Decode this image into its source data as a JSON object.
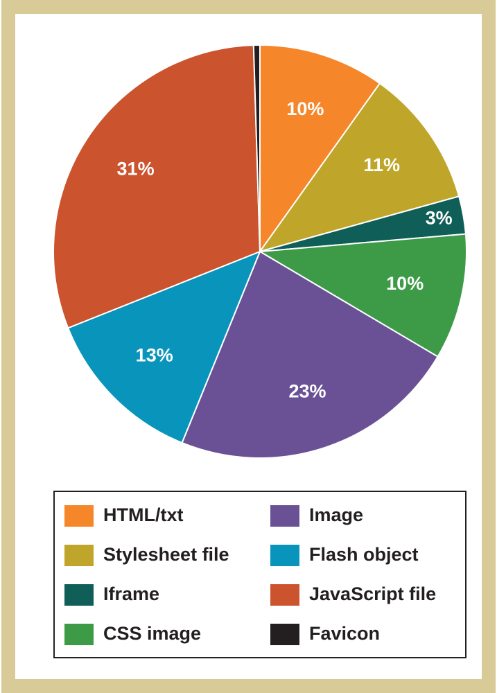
{
  "chart_data": {
    "type": "pie",
    "categories": [
      "HTML/txt",
      "Stylesheet file",
      "Iframe",
      "CSS image",
      "Image",
      "Flash object",
      "JavaScript file",
      "Favicon"
    ],
    "values": [
      10,
      11,
      3,
      10,
      23,
      13,
      31,
      0.5
    ],
    "value_labels": [
      "10%",
      "11%",
      "3%",
      "10%",
      "23%",
      "13%",
      "31%",
      null
    ],
    "colors": [
      "#f5862a",
      "#bfa62a",
      "#0f5e57",
      "#3d9b48",
      "#6a5196",
      "#0894bb",
      "#cb532e",
      "#231f20"
    ],
    "legend": "bottom"
  }
}
